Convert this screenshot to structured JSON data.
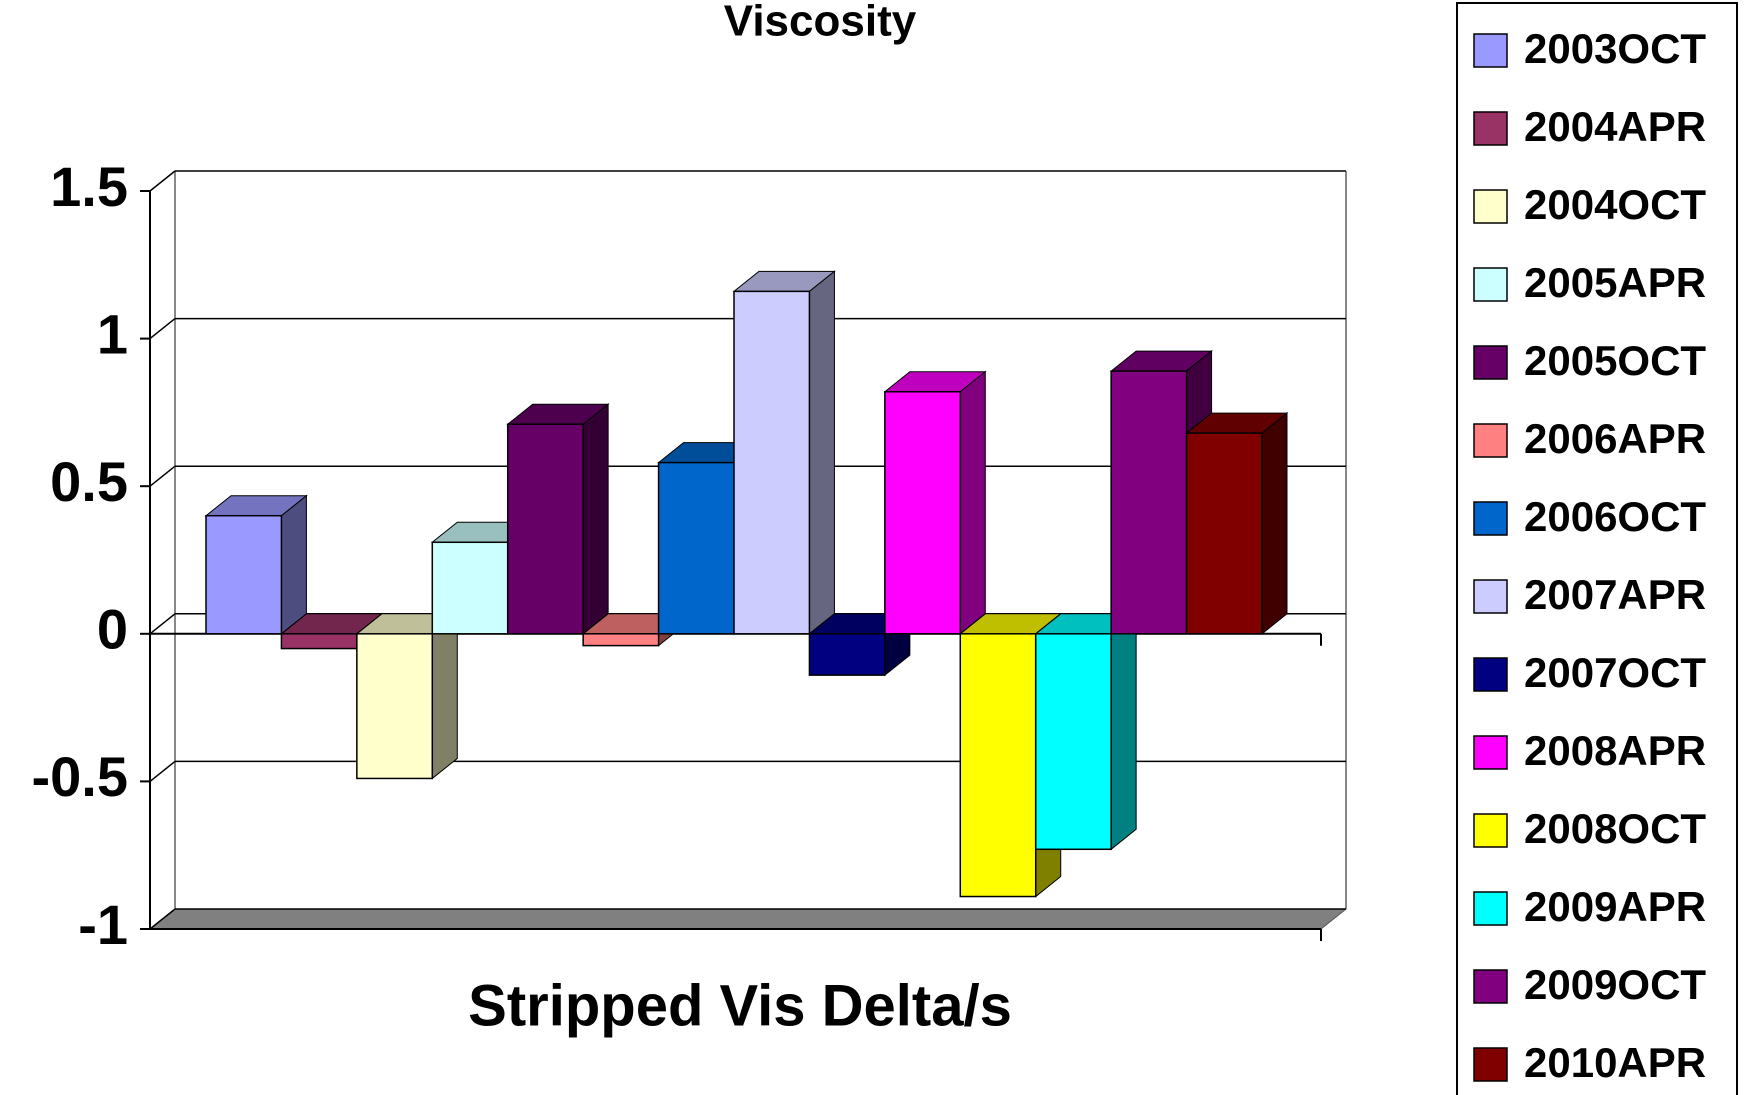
{
  "chart_data": {
    "type": "bar3d",
    "title": "Viscosity",
    "categories": [
      "Stripped Vis Delta/s"
    ],
    "ylim": [
      -1,
      1.5
    ],
    "yticks": [
      -1,
      -0.5,
      0,
      0.5,
      1,
      1.5
    ],
    "grid": true,
    "legend": "right",
    "series": [
      {
        "name": "2003OCT",
        "color": "#9999ff",
        "values": [
          0.4
        ]
      },
      {
        "name": "2004APR",
        "color": "#993366",
        "values": [
          -0.05
        ]
      },
      {
        "name": "2004OCT",
        "color": "#ffffcc",
        "values": [
          -0.49
        ]
      },
      {
        "name": "2005APR",
        "color": "#ccffff",
        "values": [
          0.31
        ]
      },
      {
        "name": "2005OCT",
        "color": "#660066",
        "values": [
          0.71
        ]
      },
      {
        "name": "2006APR",
        "color": "#ff8080",
        "values": [
          -0.04
        ]
      },
      {
        "name": "2006OCT",
        "color": "#0066cc",
        "values": [
          0.58
        ]
      },
      {
        "name": "2007APR",
        "color": "#ccccff",
        "values": [
          1.16
        ]
      },
      {
        "name": "2007OCT",
        "color": "#000080",
        "values": [
          -0.14
        ]
      },
      {
        "name": "2008APR",
        "color": "#ff00ff",
        "values": [
          0.82
        ]
      },
      {
        "name": "2008OCT",
        "color": "#ffff00",
        "values": [
          -0.89
        ]
      },
      {
        "name": "2009APR",
        "color": "#00ffff",
        "values": [
          -0.73
        ]
      },
      {
        "name": "2009OCT",
        "color": "#800080",
        "values": [
          0.89
        ]
      },
      {
        "name": "2010APR",
        "color": "#800000",
        "values": [
          0.68
        ]
      }
    ]
  }
}
